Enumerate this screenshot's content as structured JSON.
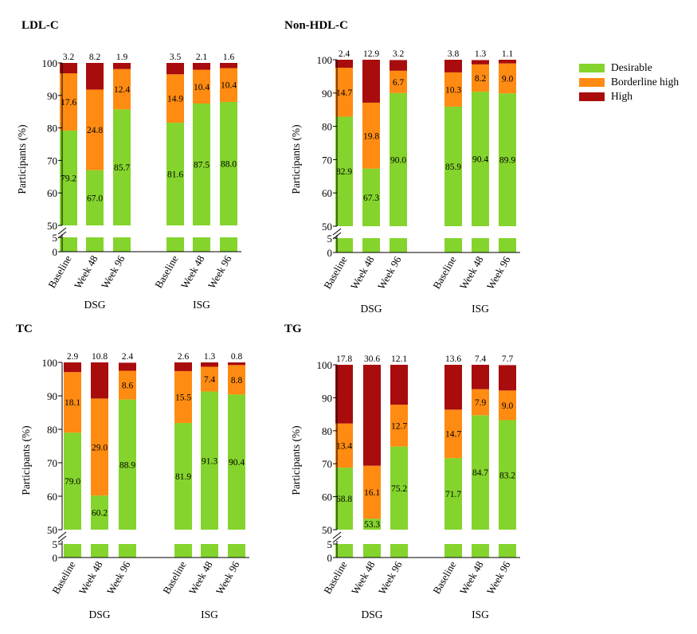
{
  "legend": {
    "placement": "right",
    "items": [
      {
        "name": "Desirable",
        "color": "#84d42d"
      },
      {
        "name": "Borderline high",
        "color": "#ff8b12"
      },
      {
        "name": "High",
        "color": "#a80c0c"
      }
    ]
  },
  "chart_data": [
    {
      "type": "bar",
      "stacked": true,
      "title": "LDL-C",
      "ylabel": "Participants (%)",
      "ylim": [
        0,
        100
      ],
      "axis_break": [
        5,
        50
      ],
      "yticks": [
        "0",
        "5",
        "50",
        "60",
        "70",
        "80",
        "90",
        "100"
      ],
      "groups": [
        "DSG",
        "ISG"
      ],
      "categories": [
        "Baseline",
        "Week 48",
        "Week 96",
        "Baseline",
        "Week 48",
        "Week 96"
      ],
      "series": [
        {
          "name": "Desirable",
          "values": [
            79.2,
            67.0,
            85.7,
            81.6,
            87.5,
            88.0
          ],
          "labels": [
            "79.2",
            "67.0",
            "85.7",
            "81.6",
            "87.5",
            "88.0"
          ]
        },
        {
          "name": "Borderline high",
          "values": [
            17.6,
            24.8,
            12.4,
            14.9,
            10.4,
            10.4
          ],
          "labels": [
            "17.6",
            "24.8",
            "12.4",
            "14.9",
            "10.4",
            "10.4"
          ]
        },
        {
          "name": "High",
          "values": [
            3.2,
            8.2,
            1.9,
            3.5,
            2.1,
            1.6
          ],
          "labels": [
            "3.2",
            "8.2",
            "1.9",
            "3.5",
            "2.1",
            "1.6"
          ]
        }
      ]
    },
    {
      "type": "bar",
      "stacked": true,
      "title": "Non-HDL-C",
      "ylabel": "Participants (%)",
      "ylim": [
        0,
        100
      ],
      "axis_break": [
        5,
        50
      ],
      "yticks": [
        "0",
        "5",
        "50",
        "60",
        "70",
        "80",
        "90",
        "100"
      ],
      "groups": [
        "DSG",
        "ISG"
      ],
      "categories": [
        "Baseline",
        "Week 48",
        "Week 96",
        "Baseline",
        "Week 48",
        "Week 96"
      ],
      "series": [
        {
          "name": "Desirable",
          "values": [
            82.9,
            67.3,
            90.0,
            85.9,
            90.4,
            89.9
          ],
          "labels": [
            "82.9",
            "67.3",
            "90.0",
            "85.9",
            "90.4",
            "89.9"
          ]
        },
        {
          "name": "Borderline high",
          "values": [
            14.7,
            19.8,
            6.7,
            10.3,
            8.2,
            9.0
          ],
          "labels": [
            "14.7",
            "19.8",
            "6.7",
            "10.3",
            "8.2",
            "9.0"
          ]
        },
        {
          "name": "High",
          "values": [
            2.4,
            12.9,
            3.2,
            3.8,
            1.3,
            1.1
          ],
          "labels": [
            "2.4",
            "12.9",
            "3.2",
            "3.8",
            "1.3",
            "1.1"
          ]
        }
      ]
    },
    {
      "type": "bar",
      "stacked": true,
      "title": "TC",
      "ylabel": "Participants (%)",
      "ylim": [
        0,
        100
      ],
      "axis_break": [
        5,
        50
      ],
      "yticks": [
        "0",
        "5",
        "50",
        "60",
        "70",
        "80",
        "90",
        "100"
      ],
      "groups": [
        "DSG",
        "ISG"
      ],
      "categories": [
        "Baseline",
        "Week 48",
        "Week 96",
        "Baseline",
        "Week 48",
        "Week 96"
      ],
      "series": [
        {
          "name": "Desirable",
          "values": [
            79.0,
            60.2,
            88.9,
            81.9,
            91.3,
            90.4
          ],
          "labels": [
            "79.0",
            "60.2",
            "88.9",
            "81.9",
            "91.3",
            "90.4"
          ]
        },
        {
          "name": "Borderline high",
          "values": [
            18.1,
            29.0,
            8.6,
            15.5,
            7.4,
            8.8
          ],
          "labels": [
            "18.1",
            "29.0",
            "8.6",
            "15.5",
            "7.4",
            "8.8"
          ]
        },
        {
          "name": "High",
          "values": [
            2.9,
            10.8,
            2.4,
            2.6,
            1.3,
            0.8
          ],
          "labels": [
            "2.9",
            "10.8",
            "2.4",
            "2.6",
            "1.3",
            "0.8"
          ]
        }
      ]
    },
    {
      "type": "bar",
      "stacked": true,
      "title": "TG",
      "ylabel": "Participants (%)",
      "ylim": [
        0,
        100
      ],
      "axis_break": [
        5,
        50
      ],
      "yticks": [
        "0",
        "5",
        "50",
        "60",
        "70",
        "80",
        "90",
        "100"
      ],
      "groups": [
        "DSG",
        "ISG"
      ],
      "categories": [
        "Baseline",
        "Week 48",
        "Week 96",
        "Baseline",
        "Week 48",
        "Week 96"
      ],
      "series": [
        {
          "name": "Desirable",
          "values": [
            68.8,
            53.3,
            75.2,
            71.7,
            84.7,
            83.2
          ],
          "labels": [
            "68.8",
            "53.3",
            "75.2",
            "71.7",
            "84.7",
            "83.2"
          ]
        },
        {
          "name": "Borderline high",
          "values": [
            13.4,
            16.1,
            12.7,
            14.7,
            7.9,
            9.0
          ],
          "labels": [
            "13.4",
            "16.1",
            "12.7",
            "14.7",
            "7.9",
            "9.0"
          ]
        },
        {
          "name": "High",
          "values": [
            17.8,
            30.6,
            12.1,
            13.6,
            7.4,
            7.7
          ],
          "labels": [
            "17.8",
            "30.6",
            "12.1",
            "13.6",
            "7.4",
            "7.7"
          ]
        }
      ]
    }
  ]
}
